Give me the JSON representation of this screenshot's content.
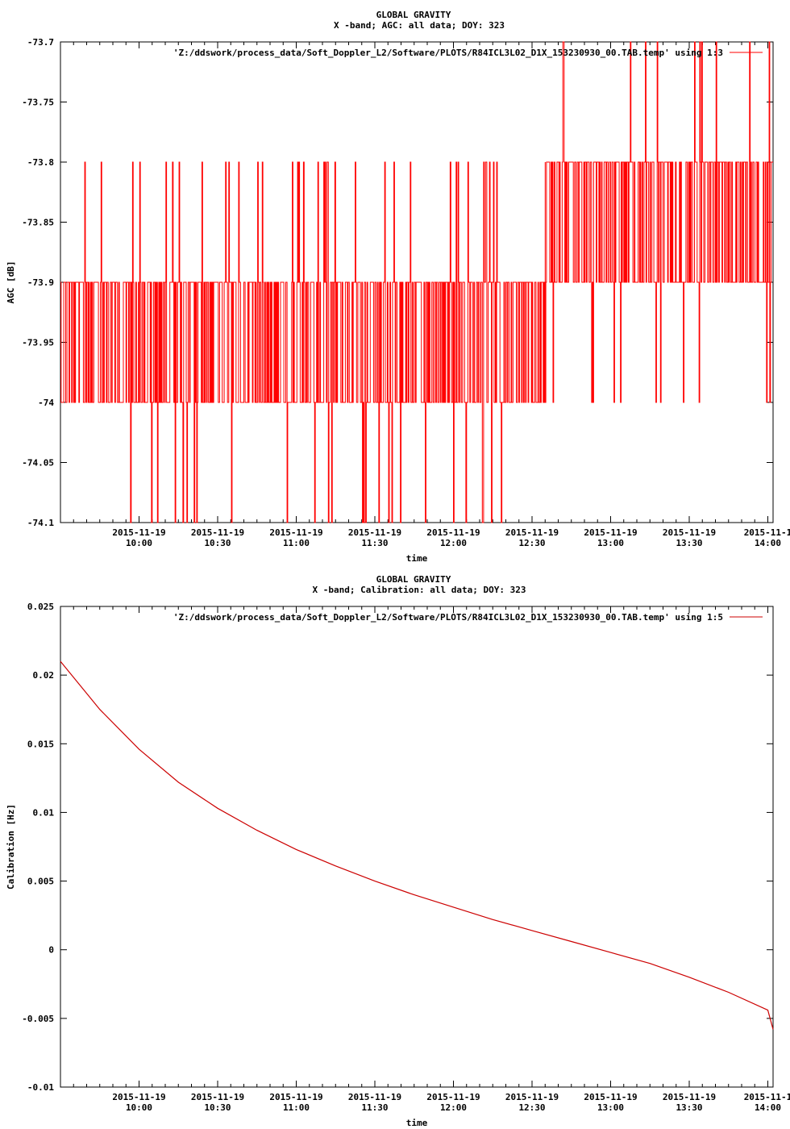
{
  "chart_data": [
    {
      "type": "line",
      "title": "GLOBAL GRAVITY",
      "subtitle": "X -band; AGC: all data; DOY: 323",
      "xlabel": "time",
      "ylabel": "AGC [dB]",
      "ylim": [
        -74.1,
        -73.7
      ],
      "yticks": [
        "-73.7",
        "-73.75",
        "-73.8",
        "-73.85",
        "-73.9",
        "-73.95",
        "-74",
        "-74.05",
        "-74.1"
      ],
      "ytick_values": [
        -73.7,
        -73.75,
        -73.8,
        -73.85,
        -73.9,
        -73.95,
        -74.0,
        -74.05,
        -74.1
      ],
      "xticks_date": [
        "2015-11-19",
        "2015-11-19",
        "2015-11-19",
        "2015-11-19",
        "2015-11-19",
        "2015-11-19",
        "2015-11-19",
        "2015-11-19",
        "2015-11-1"
      ],
      "xticks_time": [
        "10:00",
        "10:30",
        "11:00",
        "11:30",
        "12:00",
        "12:30",
        "13:00",
        "13:30",
        "14:00"
      ],
      "xlim": [
        "2015-11-19 09:30",
        "2015-11-19 14:02"
      ],
      "color": "#ff0000",
      "series": [
        {
          "name": "'Z:/ddswork/process_data/Soft_Doppler_L2/Software/PLOTS/R84ICL3L02_D1X_153230930_00.TAB.temp' using 1:3",
          "noisy": true,
          "segments": [
            {
              "from": "09:30",
              "to": "12:35",
              "levels": [
                -73.9,
                -74.0
              ],
              "rare_high": -73.8,
              "rare_low": -74.1
            },
            {
              "from": "12:35",
              "to": "14:02",
              "levels": [
                -73.8,
                -73.9
              ],
              "rare_high": -73.7,
              "rare_low": -74.0
            }
          ]
        }
      ],
      "legend_position": "top-right",
      "grid": false
    },
    {
      "type": "line",
      "title": "GLOBAL GRAVITY",
      "subtitle": "X -band; Calibration: all data; DOY: 323",
      "xlabel": "time",
      "ylabel": "Calibration [Hz]",
      "ylim": [
        -0.01,
        0.025
      ],
      "yticks": [
        "0.025",
        "0.02",
        "0.015",
        "0.01",
        "0.005",
        "0",
        "-0.005",
        "-0.01"
      ],
      "ytick_values": [
        0.025,
        0.02,
        0.015,
        0.01,
        0.005,
        0.0,
        -0.005,
        -0.01
      ],
      "xticks_date": [
        "2015-11-19",
        "2015-11-19",
        "2015-11-19",
        "2015-11-19",
        "2015-11-19",
        "2015-11-19",
        "2015-11-19",
        "2015-11-19",
        "2015-11-1"
      ],
      "xticks_time": [
        "10:00",
        "10:30",
        "11:00",
        "11:30",
        "12:00",
        "12:30",
        "13:00",
        "13:30",
        "14:00"
      ],
      "xlim": [
        "2015-11-19 09:30",
        "2015-11-19 14:02"
      ],
      "color": "#cc0000",
      "series": [
        {
          "name": "'Z:/ddswork/process_data/Soft_Doppler_L2/Software/PLOTS/R84ICL3L02_D1X_153230930_00.TAB.temp' using 1:5",
          "x": [
            "09:30",
            "09:45",
            "10:00",
            "10:15",
            "10:30",
            "10:45",
            "11:00",
            "11:15",
            "11:30",
            "11:45",
            "12:00",
            "12:15",
            "12:30",
            "12:45",
            "13:00",
            "13:15",
            "13:30",
            "13:45",
            "14:00",
            "14:02"
          ],
          "y": [
            0.021,
            0.0175,
            0.0146,
            0.0122,
            0.0103,
            0.0087,
            0.0073,
            0.0061,
            0.005,
            0.004,
            0.0031,
            0.0022,
            0.0014,
            0.0006,
            -0.0002,
            -0.001,
            -0.002,
            -0.0031,
            -0.0044,
            -0.0058
          ]
        }
      ],
      "legend_position": "top-right",
      "grid": false
    }
  ]
}
